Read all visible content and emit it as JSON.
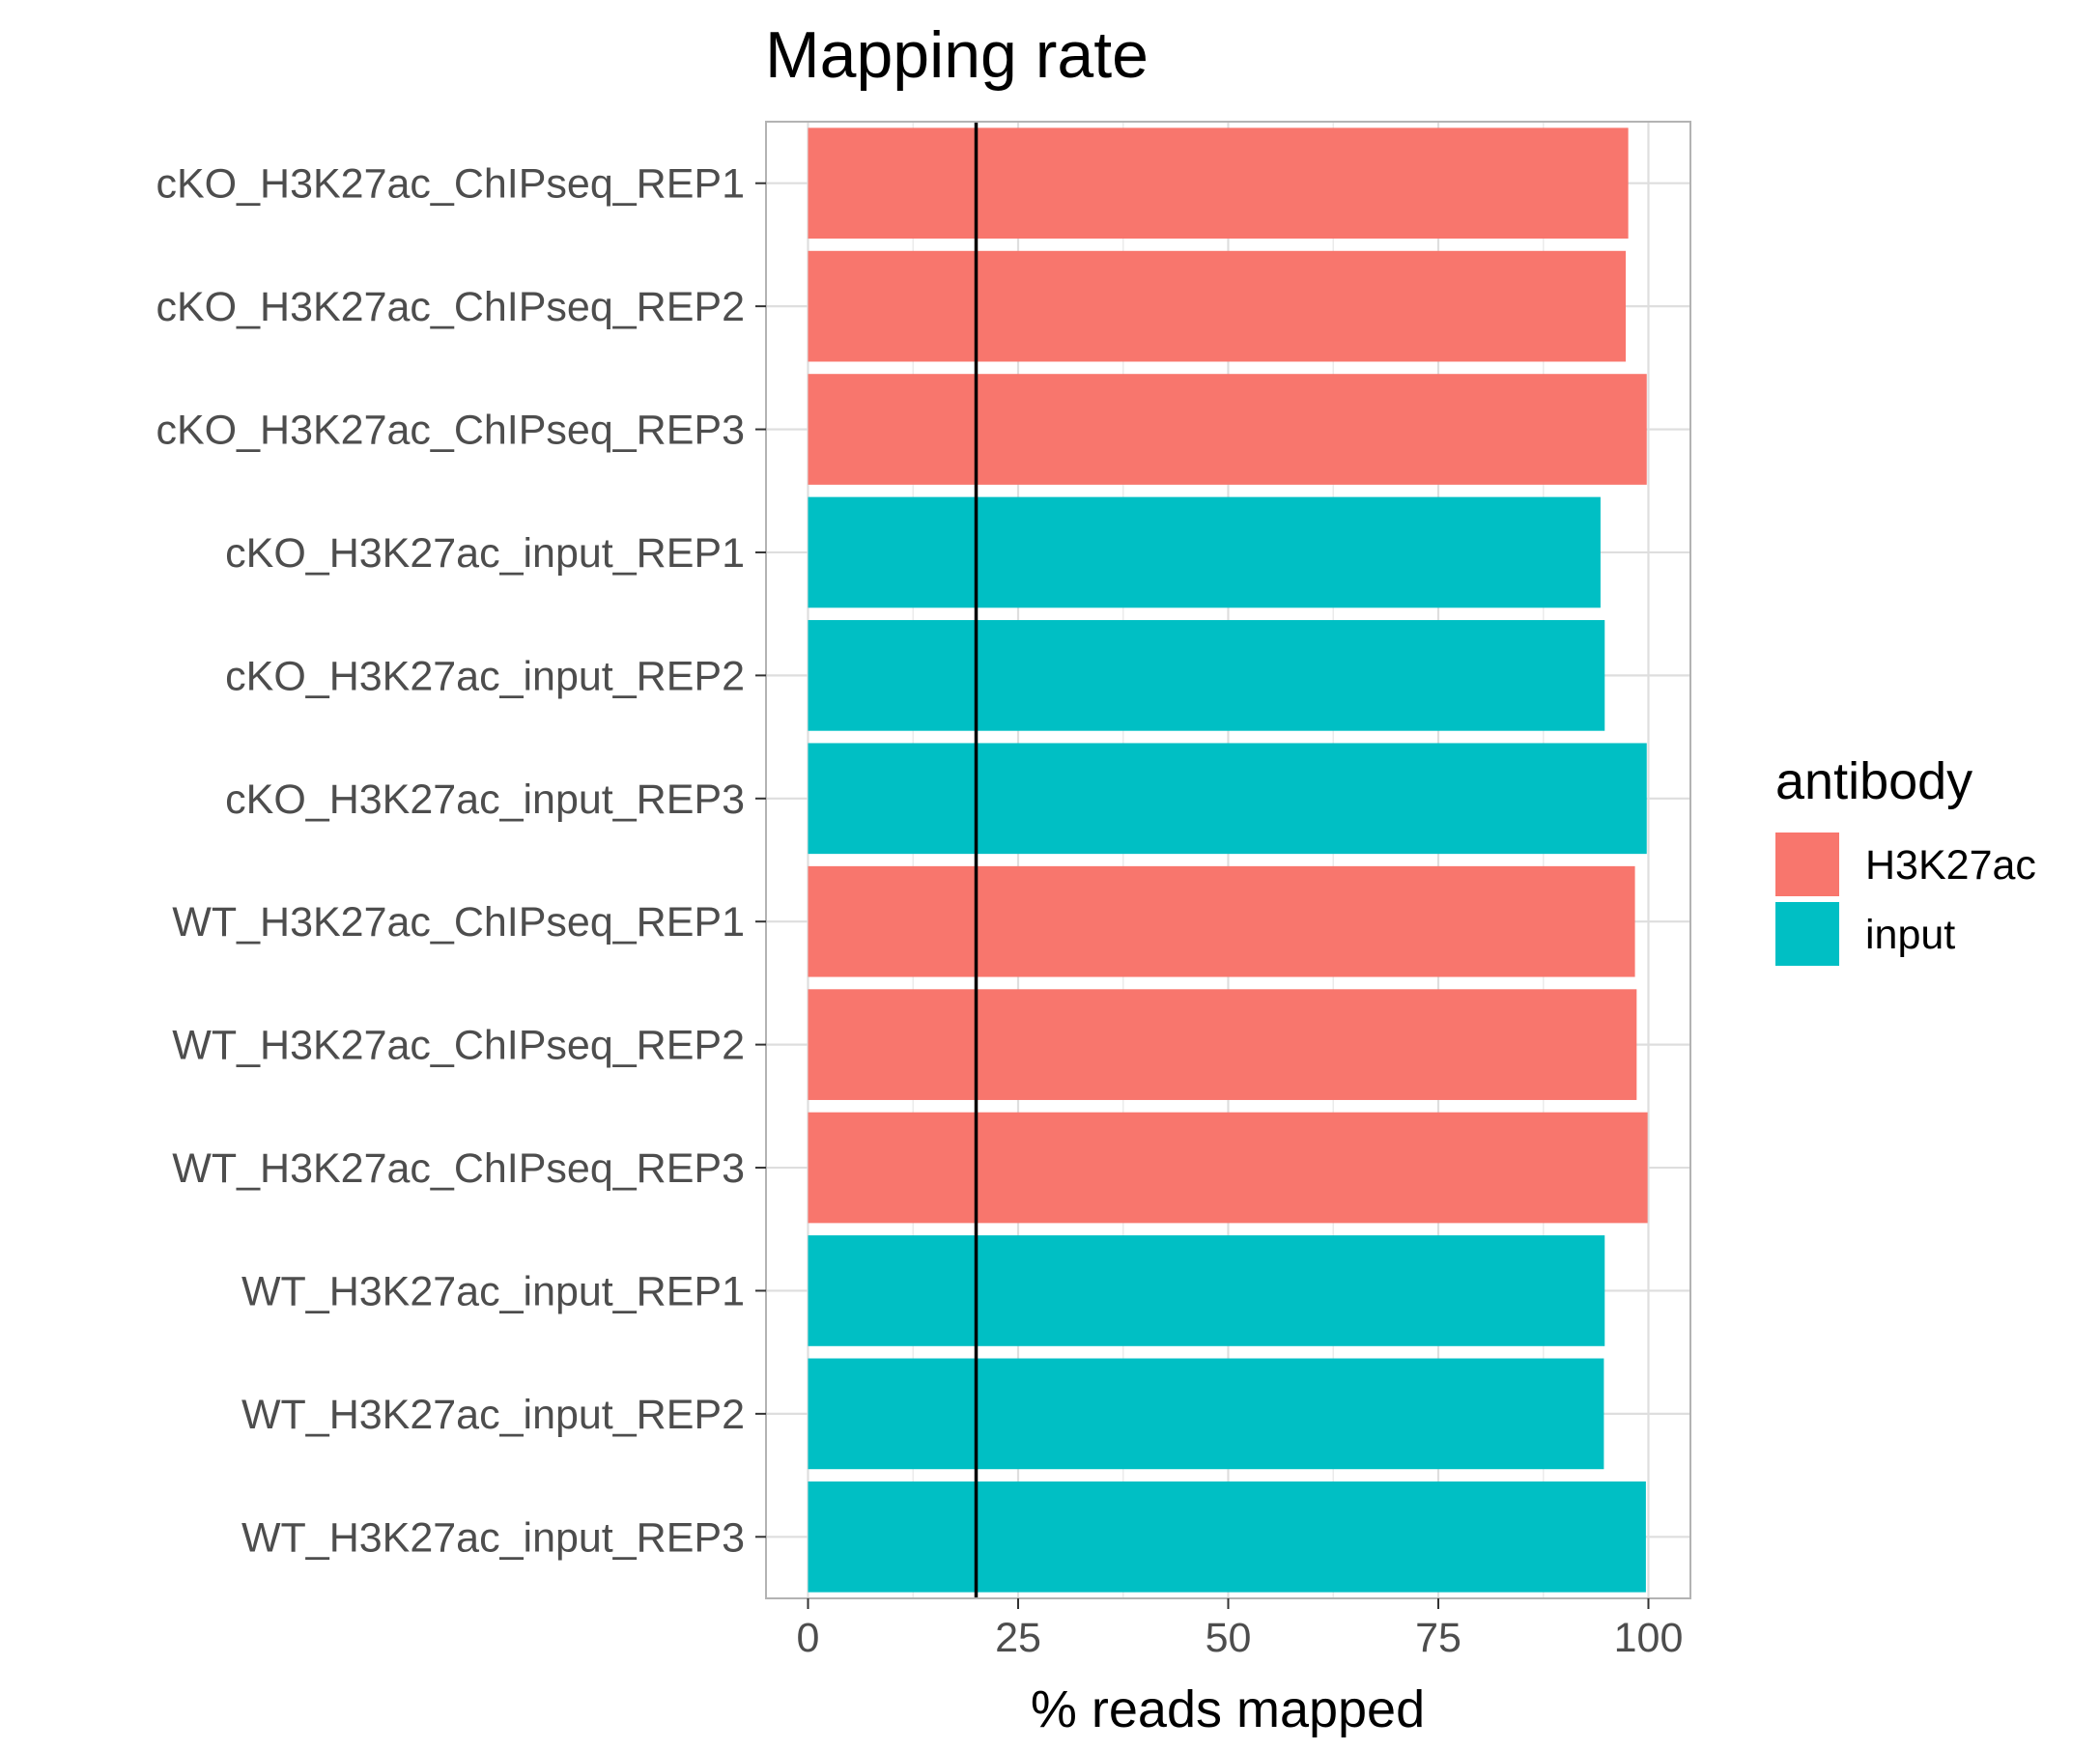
{
  "chart_data": {
    "type": "bar",
    "orientation": "horizontal",
    "title": "Mapping rate",
    "xlabel": "% reads mapped",
    "ylabel": "",
    "xlim": [
      -5,
      105
    ],
    "x_ticks": [
      0,
      25,
      50,
      75,
      100
    ],
    "grid": true,
    "reference_line": {
      "x": 20,
      "color": "#000000"
    },
    "categories": [
      "cKO_H3K27ac_ChIPseq_REP1",
      "cKO_H3K27ac_ChIPseq_REP2",
      "cKO_H3K27ac_ChIPseq_REP3",
      "cKO_H3K27ac_input_REP1",
      "cKO_H3K27ac_input_REP2",
      "cKO_H3K27ac_input_REP3",
      "WT_H3K27ac_ChIPseq_REP1",
      "WT_H3K27ac_ChIPseq_REP2",
      "WT_H3K27ac_ChIPseq_REP3",
      "WT_H3K27ac_input_REP1",
      "WT_H3K27ac_input_REP2",
      "WT_H3K27ac_input_REP3"
    ],
    "values": [
      97.6,
      97.3,
      99.8,
      94.3,
      94.8,
      99.8,
      98.4,
      98.6,
      99.9,
      94.8,
      94.7,
      99.7
    ],
    "groups": [
      "H3K27ac",
      "H3K27ac",
      "H3K27ac",
      "input",
      "input",
      "input",
      "H3K27ac",
      "H3K27ac",
      "H3K27ac",
      "input",
      "input",
      "input"
    ],
    "legend": {
      "title": "antibody",
      "position": "right",
      "entries": [
        {
          "name": "H3K27ac",
          "color": "#F8766D"
        },
        {
          "name": "input",
          "color": "#00BFC4"
        }
      ]
    }
  }
}
